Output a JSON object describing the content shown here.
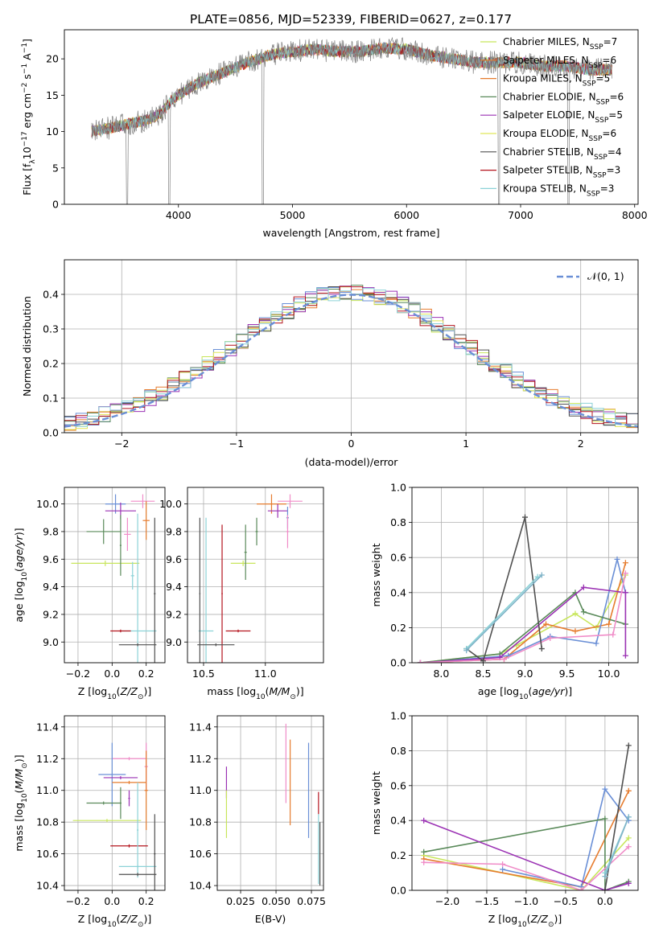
{
  "figure": {
    "title": "PLATE=0856, MJD=52339, FIBERID=0627, z=0.177"
  },
  "colors": {
    "spectrum": "#808080",
    "normal_curve": "#6a8fd6",
    "grid": "#b0b0b0"
  },
  "chart_data": [
    {
      "id": "spectrum",
      "type": "line",
      "xlabel": "wavelength [Angstrom, rest frame]",
      "ylabel": "Flux [f$_\\lambda$10$^{-17}$ erg cm$^{-2}$ s$^{-1}$ A$^{-1}$]",
      "ylabel_parts": {
        "a": "Flux [f",
        "b": "λ",
        "c": "10",
        "d": "−17",
        "e": " erg cm",
        "f": "−2",
        "g": " s",
        "h": "−1",
        "i": " A",
        "j": "−1",
        "k": "]"
      },
      "xlim": [
        3000,
        8030
      ],
      "ylim": [
        0,
        24
      ],
      "xticks": [
        "4000",
        "5000",
        "6000",
        "7000",
        "8000"
      ],
      "yticks": [
        "0",
        "5",
        "10",
        "15",
        "20"
      ],
      "legend_position": "upper right",
      "data_anchor_x": [
        3240,
        3400,
        3550,
        3700,
        3850,
        3950,
        4050,
        4150,
        4300,
        4450,
        4600,
        4800,
        5000,
        5200,
        5400,
        5600,
        5800,
        6000,
        6200,
        6400,
        6600,
        6800,
        7000,
        7200,
        7400,
        7600,
        7800
      ],
      "data_anchor_y": [
        10.0,
        10.5,
        11.0,
        11.5,
        12.5,
        14.5,
        15.5,
        16.5,
        17.5,
        18.5,
        19.5,
        20.5,
        21.0,
        21.3,
        21.0,
        21.0,
        21.5,
        21.3,
        20.5,
        20.0,
        19.5,
        19.5,
        19.5,
        19.0,
        19.0,
        18.5,
        18.5
      ],
      "series": [
        {
          "name": "Chabrier MILES",
          "nssp": "7",
          "color": "#c8e65c"
        },
        {
          "name": "Salpeter MILES",
          "nssp": "6",
          "color": "#e67c2e"
        },
        {
          "name": "Kroupa MILES",
          "nssp": "5",
          "color": "#e67c2e"
        },
        {
          "name": "Chabrier ELODIE",
          "nssp": "6",
          "color": "#5a8a5a"
        },
        {
          "name": "Salpeter ELODIE",
          "nssp": "5",
          "color": "#9b32b4"
        },
        {
          "name": "Kroupa ELODIE",
          "nssp": "6",
          "color": "#e0e65a"
        },
        {
          "name": "Chabrier STELIB",
          "nssp": "4",
          "color": "#505050"
        },
        {
          "name": "Salpeter STELIB",
          "nssp": "3",
          "color": "#b4141e"
        },
        {
          "name": "Kroupa STELIB",
          "nssp": "3",
          "color": "#8cd2d7"
        }
      ],
      "nssp_label": "N",
      "nssp_sub": "SSP"
    },
    {
      "id": "residuals",
      "type": "area",
      "xlabel": "(data-model)/error",
      "ylabel": "Normed distribution",
      "xlim": [
        -2.5,
        2.5
      ],
      "ylim": [
        0,
        0.5
      ],
      "xticks": [
        "−2",
        "−1",
        "0",
        "1",
        "2"
      ],
      "yticks": [
        "0.0",
        "0.1",
        "0.2",
        "0.3",
        "0.4"
      ],
      "legend_label": "𝒩(0, 1)",
      "bin_width": 0.1,
      "series_colors": [
        "#c8e65c",
        "#e67c2e",
        "#6a8fd6",
        "#5a8a5a",
        "#9b32b4",
        "#e0e65a",
        "#505050",
        "#b4141e",
        "#8cd2d7"
      ]
    },
    {
      "id": "age_vs_Z",
      "type": "scatter",
      "xlabel": "Z [log$_{10}$(Z/Z$_\\odot$)]",
      "ylabel": "age  [log$_{10}$(age/yr)]",
      "xlim": [
        -0.28,
        0.31
      ],
      "ylim": [
        8.85,
        10.12
      ],
      "xticks": [
        "−0.2",
        "0.0",
        "0.2"
      ],
      "yticks": [
        "9.0",
        "9.2",
        "9.4",
        "9.6",
        "9.8",
        "10.0"
      ],
      "points": [
        {
          "x": 0.18,
          "y": 10.02,
          "xerr": 0.07,
          "yerr": 0.05,
          "color": "#f08cc8"
        },
        {
          "x": 0.02,
          "y": 10.0,
          "xerr": 0.06,
          "yerr": 0.07,
          "color": "#6a8fd6"
        },
        {
          "x": 0.05,
          "y": 9.95,
          "xerr": 0.09,
          "yerr": 0.06,
          "color": "#9b32b4"
        },
        {
          "x": 0.2,
          "y": 9.88,
          "xerr": 0.02,
          "yerr": 0.14,
          "color": "#e67c2e"
        },
        {
          "x": -0.05,
          "y": 9.8,
          "xerr": 0.1,
          "yerr": 0.09,
          "color": "#5a8a5a"
        },
        {
          "x": 0.09,
          "y": 9.78,
          "xerr": 0.02,
          "yerr": 0.12,
          "color": "#f08cc8"
        },
        {
          "x": -0.04,
          "y": 9.57,
          "xerr": 0.2,
          "yerr": 0.02,
          "color": "#c8e65c"
        },
        {
          "x": 0.05,
          "y": 9.7,
          "xerr": 0.005,
          "yerr": 0.22,
          "color": "#5a8a5a"
        },
        {
          "x": 0.12,
          "y": 9.48,
          "xerr": 0.01,
          "yerr": 0.1,
          "color": "#8cd2d7"
        },
        {
          "x": 0.15,
          "y": 9.08,
          "xerr": 0.11,
          "yerr": 0.85,
          "color": "#8cd2d7"
        },
        {
          "x": 0.05,
          "y": 9.08,
          "xerr": 0.06,
          "yerr": 0.01,
          "color": "#b4141e"
        },
        {
          "x": 0.15,
          "y": 8.98,
          "xerr": 0.11,
          "yerr": 0.01,
          "color": "#505050"
        },
        {
          "x": 0.25,
          "y": 9.35,
          "xerr": 0.005,
          "yerr": 0.55,
          "color": "#505050"
        }
      ]
    },
    {
      "id": "age_vs_mass",
      "type": "scatter",
      "xlabel": "mass [log$_{10}$(M/M$_\\odot$)]",
      "ylabel": "",
      "xlim": [
        10.37,
        11.47
      ],
      "ylim": [
        8.85,
        10.12
      ],
      "xticks": [
        "10.5",
        "11.0"
      ],
      "yticks": [
        "9.0",
        "9.2",
        "9.4",
        "9.6",
        "9.8",
        "10.0"
      ],
      "points": [
        {
          "x": 11.2,
          "y": 10.02,
          "xerr": 0.1,
          "yerr": 0.05,
          "color": "#f08cc8"
        },
        {
          "x": 11.05,
          "y": 10.0,
          "xerr": 0.12,
          "yerr": 0.07,
          "color": "#e67c2e"
        },
        {
          "x": 11.1,
          "y": 9.95,
          "xerr": 0.08,
          "yerr": 0.05,
          "color": "#9b32b4"
        },
        {
          "x": 10.93,
          "y": 9.8,
          "xerr": 0.01,
          "yerr": 0.1,
          "color": "#5a8a5a"
        },
        {
          "x": 11.18,
          "y": 9.9,
          "xerr": 0.01,
          "yerr": 0.08,
          "color": "#6a8fd6"
        },
        {
          "x": 11.18,
          "y": 9.8,
          "xerr": 0.01,
          "yerr": 0.12,
          "color": "#f08cc8"
        },
        {
          "x": 10.82,
          "y": 9.57,
          "xerr": 0.1,
          "yerr": 0.02,
          "color": "#c8e65c"
        },
        {
          "x": 10.84,
          "y": 9.65,
          "xerr": 0.01,
          "yerr": 0.2,
          "color": "#5a8a5a"
        },
        {
          "x": 10.52,
          "y": 9.08,
          "xerr": 0.06,
          "yerr": 0.82,
          "color": "#8cd2d7"
        },
        {
          "x": 10.78,
          "y": 9.08,
          "xerr": 0.1,
          "yerr": 0.01,
          "color": "#b4141e"
        },
        {
          "x": 10.65,
          "y": 9.35,
          "xerr": 0.005,
          "yerr": 0.5,
          "color": "#b4141e"
        },
        {
          "x": 10.47,
          "y": 9.35,
          "xerr": 0.005,
          "yerr": 0.55,
          "color": "#505050"
        },
        {
          "x": 10.6,
          "y": 8.98,
          "xerr": 0.15,
          "yerr": 0.01,
          "color": "#505050"
        }
      ]
    },
    {
      "id": "weight_vs_age",
      "type": "line",
      "xlabel": "age  [log$_{10}$(age/yr)]",
      "ylabel": "mass weight",
      "xlim": [
        7.65,
        10.35
      ],
      "ylim": [
        0,
        1
      ],
      "xticks": [
        "8.0",
        "8.5",
        "9.0",
        "9.5",
        "10.0"
      ],
      "yticks": [
        "0.0",
        "0.2",
        "0.4",
        "0.6",
        "0.8",
        "1.0"
      ],
      "series": [
        {
          "name": "Chabrier MILES",
          "color": "#c8e65c",
          "x": [
            7.75,
            8.7,
            8.9,
            9.6,
            9.85,
            10.2
          ],
          "y": [
            0.0,
            0.05,
            0.1,
            0.28,
            0.2,
            0.5
          ]
        },
        {
          "name": "Salpeter MILES",
          "color": "#e67c2e",
          "x": [
            7.75,
            8.75,
            9.25,
            9.6,
            10.0,
            10.2
          ],
          "y": [
            0.0,
            0.02,
            0.22,
            0.18,
            0.22,
            0.57
          ]
        },
        {
          "name": "Kroupa MILES",
          "color": "#6a8fd6",
          "x": [
            7.75,
            8.8,
            9.3,
            9.85,
            10.1,
            10.2
          ],
          "y": [
            0.0,
            0.04,
            0.15,
            0.11,
            0.59,
            0.4
          ]
        },
        {
          "name": "Chabrier ELODIE",
          "color": "#5a8a5a",
          "x": [
            7.75,
            8.7,
            9.6,
            9.7,
            10.2
          ],
          "y": [
            0.0,
            0.05,
            0.4,
            0.29,
            0.22
          ]
        },
        {
          "name": "Salpeter ELODIE",
          "color": "#9b32b4",
          "x": [
            7.75,
            8.7,
            9.7,
            10.2,
            10.2
          ],
          "y": [
            0.0,
            0.03,
            0.43,
            0.4,
            0.04
          ]
        },
        {
          "name": "Kroupa ELODIE",
          "color": "#f08cc8",
          "x": [
            7.75,
            8.75,
            9.3,
            10.05,
            10.2
          ],
          "y": [
            0.0,
            0.02,
            0.14,
            0.16,
            0.51
          ]
        },
        {
          "name": "Chabrier STELIB",
          "color": "#505050",
          "x": [
            8.3,
            8.5,
            9.0,
            9.2
          ],
          "y": [
            0.08,
            0.01,
            0.83,
            0.08
          ]
        },
        {
          "name": "Salpeter STELIB",
          "color": "#8cd2d7",
          "x": [
            8.3,
            9.15
          ],
          "y": [
            0.08,
            0.49
          ]
        },
        {
          "name": "Kroupa STELIB",
          "color": "#7fb3c8",
          "x": [
            8.3,
            9.2
          ],
          "y": [
            0.07,
            0.5
          ]
        }
      ]
    },
    {
      "id": "mass_vs_Z",
      "type": "scatter",
      "xlabel": "Z [log$_{10}$(Z/Z$_\\odot$)]",
      "ylabel": "mass [log$_{10}$(M/M$_\\odot$)]",
      "xlim": [
        -0.28,
        0.31
      ],
      "ylim": [
        10.37,
        11.47
      ],
      "xticks": [
        "−0.2",
        "0.0",
        "0.2"
      ],
      "yticks": [
        "10.4",
        "10.6",
        "10.8",
        "11.0",
        "11.2",
        "11.4"
      ],
      "points": [
        {
          "x": 0.1,
          "y": 11.2,
          "xerr": 0.1,
          "yerr": 0.01,
          "color": "#f08cc8"
        },
        {
          "x": 0.2,
          "y": 11.15,
          "xerr": 0.01,
          "yerr": 0.15,
          "color": "#f08cc8"
        },
        {
          "x": 0.0,
          "y": 11.1,
          "xerr": 0.08,
          "yerr": 0.2,
          "color": "#6a8fd6"
        },
        {
          "x": 0.05,
          "y": 11.08,
          "xerr": 0.1,
          "yerr": 0.01,
          "color": "#9b32b4"
        },
        {
          "x": 0.1,
          "y": 11.05,
          "xerr": 0.1,
          "yerr": 0.01,
          "color": "#e67c2e"
        },
        {
          "x": 0.2,
          "y": 11.0,
          "xerr": 0.01,
          "yerr": 0.25,
          "color": "#e67c2e"
        },
        {
          "x": -0.05,
          "y": 10.92,
          "xerr": 0.1,
          "yerr": 0.01,
          "color": "#5a8a5a"
        },
        {
          "x": 0.05,
          "y": 10.92,
          "xerr": 0.005,
          "yerr": 0.1,
          "color": "#5a8a5a"
        },
        {
          "x": 0.1,
          "y": 10.95,
          "xerr": 0.005,
          "yerr": 0.05,
          "color": "#9b32b4"
        },
        {
          "x": -0.03,
          "y": 10.81,
          "xerr": 0.2,
          "yerr": 0.01,
          "color": "#c8e65c"
        },
        {
          "x": 0.1,
          "y": 10.65,
          "xerr": 0.11,
          "yerr": 0.01,
          "color": "#b4141e"
        },
        {
          "x": 0.15,
          "y": 10.75,
          "xerr": 0.005,
          "yerr": 0.3,
          "color": "#8cd2d7"
        },
        {
          "x": 0.15,
          "y": 10.52,
          "xerr": 0.11,
          "yerr": 0.01,
          "color": "#8cd2d7"
        },
        {
          "x": 0.15,
          "y": 10.47,
          "xerr": 0.11,
          "yerr": 0.01,
          "color": "#505050"
        },
        {
          "x": 0.25,
          "y": 10.6,
          "xerr": 0.005,
          "yerr": 0.25,
          "color": "#505050"
        }
      ]
    },
    {
      "id": "mass_vs_ebv",
      "type": "scatter",
      "xlabel": "E(B-V)",
      "ylabel": "",
      "xlim": [
        0.0085,
        0.0835
      ],
      "ylim": [
        10.37,
        11.47
      ],
      "xticks": [
        "0.025",
        "0.050",
        "0.075"
      ],
      "yticks": [
        "10.4",
        "10.6",
        "10.8",
        "11.0",
        "11.2",
        "11.4"
      ],
      "points": [
        {
          "x": 0.015,
          "y": 11.05,
          "xerr": 0.0,
          "yerr": 0.1,
          "color": "#9b32b4"
        },
        {
          "x": 0.015,
          "y": 10.85,
          "xerr": 0.0,
          "yerr": 0.15,
          "color": "#c8e65c"
        },
        {
          "x": 0.057,
          "y": 11.17,
          "xerr": 0.0,
          "yerr": 0.25,
          "color": "#f08cc8"
        },
        {
          "x": 0.06,
          "y": 11.05,
          "xerr": 0.0,
          "yerr": 0.27,
          "color": "#e67c2e"
        },
        {
          "x": 0.073,
          "y": 11.0,
          "xerr": 0.0,
          "yerr": 0.3,
          "color": "#6a8fd6"
        },
        {
          "x": 0.08,
          "y": 10.92,
          "xerr": 0.0,
          "yerr": 0.07,
          "color": "#b4141e"
        },
        {
          "x": 0.08,
          "y": 10.63,
          "xerr": 0.0,
          "yerr": 0.22,
          "color": "#8cd2d7"
        },
        {
          "x": 0.081,
          "y": 10.6,
          "xerr": 0.0,
          "yerr": 0.2,
          "color": "#505050"
        }
      ]
    },
    {
      "id": "weight_vs_Z",
      "type": "line",
      "xlabel": "Z [log$_{10}$(Z/Z$_\\odot$)]",
      "ylabel": "mass weight",
      "xlim": [
        -2.45,
        0.42
      ],
      "ylim": [
        0,
        1
      ],
      "xticks": [
        "−2.0",
        "−1.5",
        "−1.0",
        "−0.5",
        "0.0"
      ],
      "yticks": [
        "0.0",
        "0.2",
        "0.4",
        "0.6",
        "0.8",
        "1.0"
      ],
      "series": [
        {
          "name": "Chabrier MILES",
          "color": "#c8e65c",
          "x": [
            -2.3,
            -0.3,
            0.3
          ],
          "y": [
            0.2,
            0.0,
            0.3
          ]
        },
        {
          "name": "Salpeter MILES",
          "color": "#e67c2e",
          "x": [
            -2.3,
            -0.3,
            0.3
          ],
          "y": [
            0.18,
            0.02,
            0.57
          ]
        },
        {
          "name": "Kroupa MILES",
          "color": "#6a8fd6",
          "x": [
            -1.3,
            -0.3,
            0.0,
            0.3
          ],
          "y": [
            0.12,
            0.02,
            0.58,
            0.4
          ]
        },
        {
          "name": "Chabrier ELODIE",
          "color": "#5a8a5a",
          "x": [
            -2.3,
            0.0,
            0.0,
            0.3
          ],
          "y": [
            0.22,
            0.41,
            0.0,
            0.05
          ]
        },
        {
          "name": "Salpeter ELODIE",
          "color": "#9b32b4",
          "x": [
            -2.3,
            0.0,
            0.3
          ],
          "y": [
            0.4,
            0.0,
            0.04
          ]
        },
        {
          "name": "Kroupa ELODIE",
          "color": "#f08cc8",
          "x": [
            -2.3,
            -1.3,
            -0.3,
            0.3
          ],
          "y": [
            0.16,
            0.15,
            0.0,
            0.25
          ]
        },
        {
          "name": "Chabrier STELIB",
          "color": "#505050",
          "x": [
            0.0,
            0.3
          ],
          "y": [
            0.0,
            0.83
          ]
        },
        {
          "name": "Salpeter STELIB",
          "color": "#8cd2d7",
          "x": [
            0.0,
            0.3
          ],
          "y": [
            0.1,
            0.42
          ]
        },
        {
          "name": "Kroupa STELIB",
          "color": "#7fb3c8",
          "x": [
            0.0,
            0.3
          ],
          "y": [
            0.08,
            0.42
          ]
        }
      ]
    }
  ]
}
